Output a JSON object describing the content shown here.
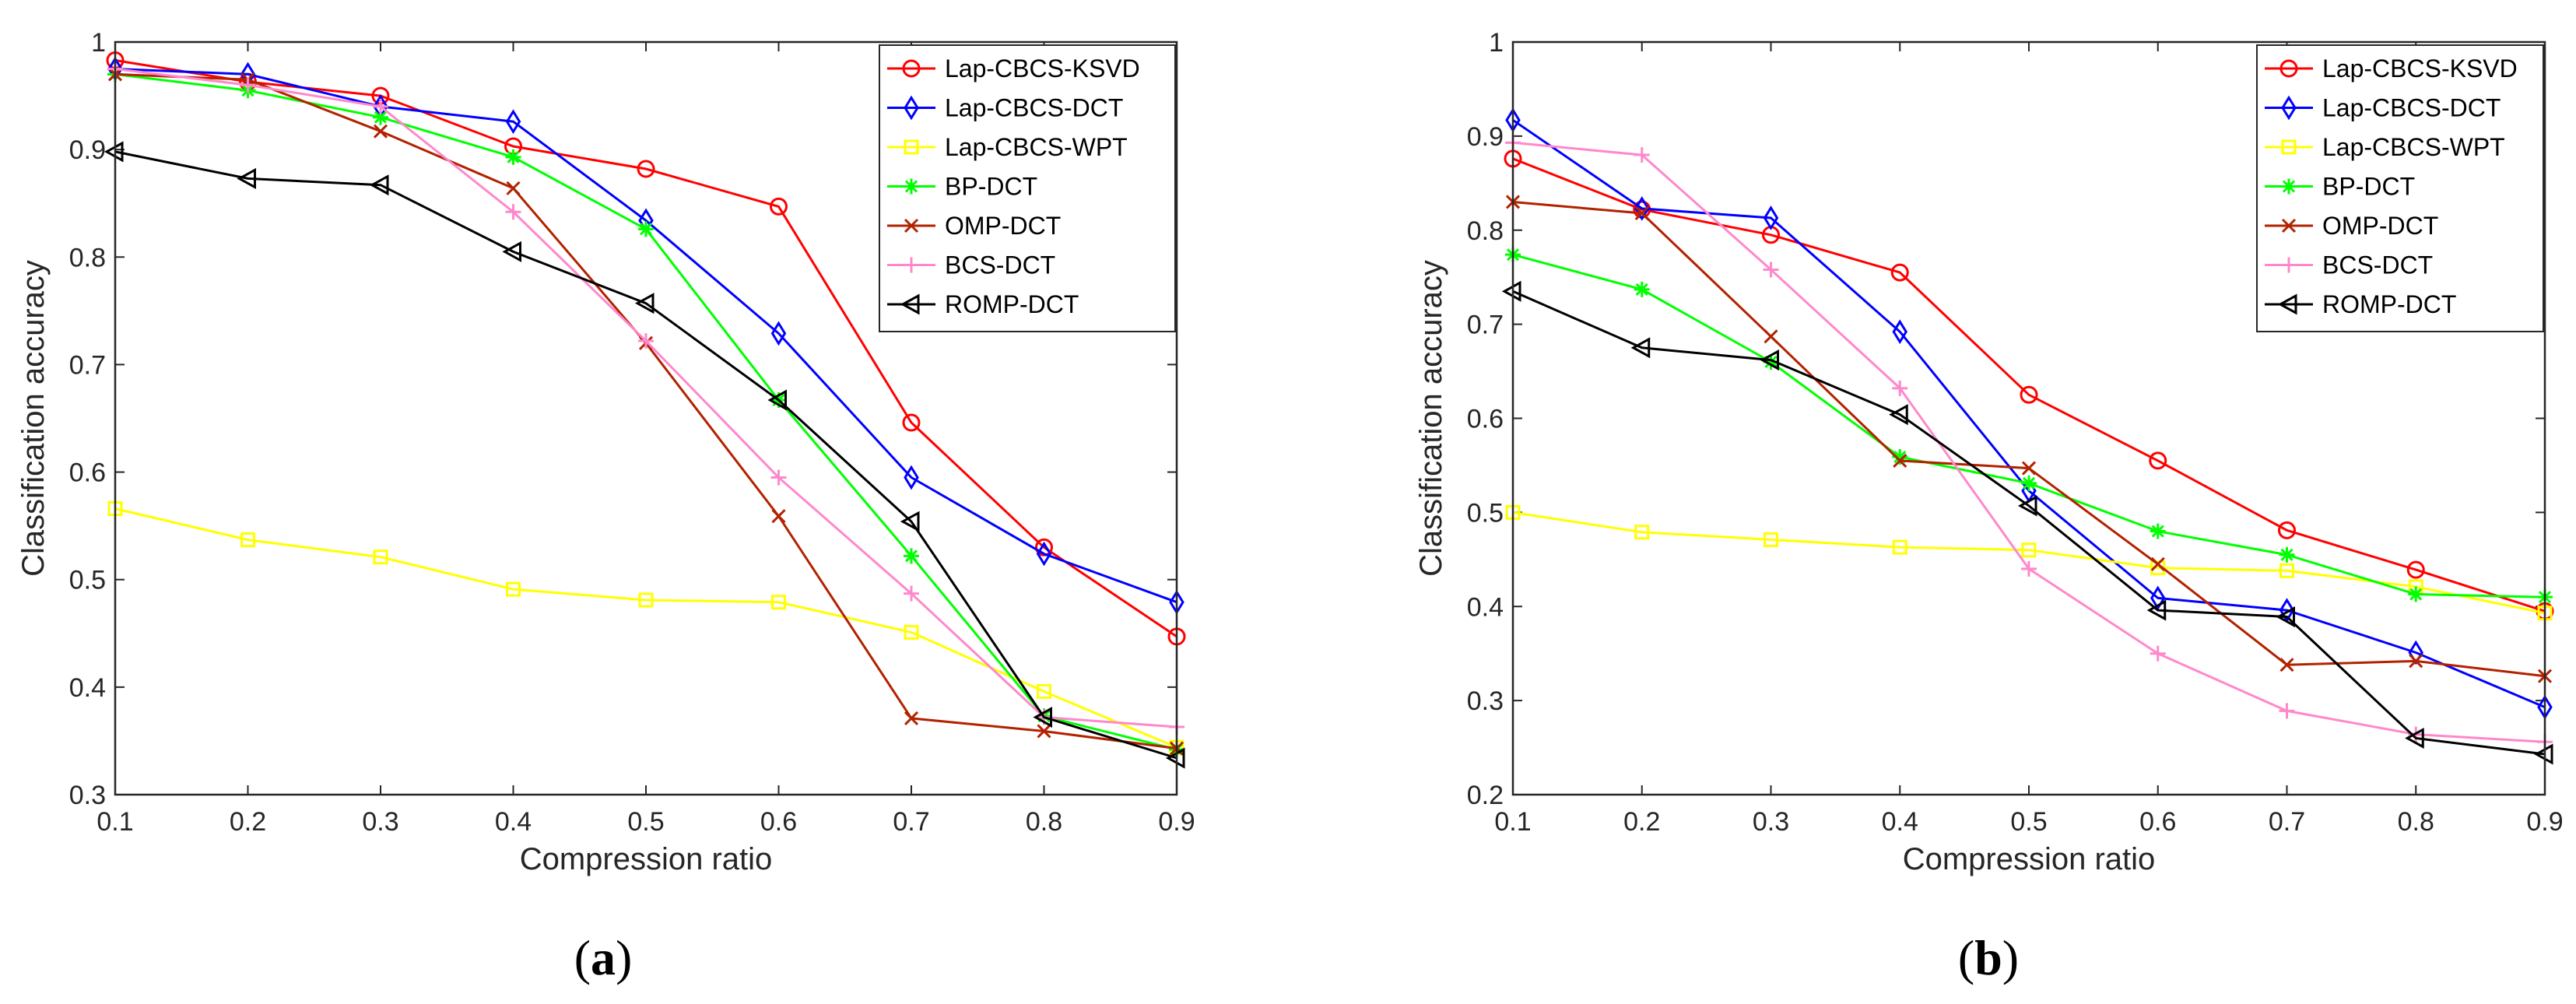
{
  "colors": {
    "Lap-CBCS-KSVD": "#ff0000",
    "Lap-CBCS-DCT": "#0000ff",
    "Lap-CBCS-WPT": "#ffff00",
    "BP-DCT": "#00ff00",
    "OMP-DCT": "#b22200",
    "BCS-DCT": "#ff88cc",
    "ROMP-DCT": "#000000"
  },
  "markers": {
    "Lap-CBCS-KSVD": "circle",
    "Lap-CBCS-DCT": "diamond",
    "Lap-CBCS-WPT": "square",
    "BP-DCT": "asterisk",
    "OMP-DCT": "x",
    "BCS-DCT": "plus",
    "ROMP-DCT": "triangle-left"
  },
  "chart_data": [
    {
      "type": "line",
      "caption": {
        "open": "(",
        "letter": "a",
        "close": ")"
      },
      "xlabel": "Compression ratio",
      "ylabel": "Classification accuracy",
      "xlim": [
        0.1,
        0.9
      ],
      "ylim": [
        0.3,
        1.0
      ],
      "x": [
        0.1,
        0.2,
        0.3,
        0.4,
        0.5,
        0.6,
        0.7,
        0.8,
        0.9
      ],
      "xticks": [
        "0.1",
        "0.2",
        "0.3",
        "0.4",
        "0.5",
        "0.6",
        "0.7",
        "0.8",
        "0.9"
      ],
      "yticks": [
        "0.3",
        "0.4",
        "0.5",
        "0.6",
        "0.7",
        "0.8",
        "0.9",
        "1"
      ],
      "legend_position": "top-right",
      "series": [
        {
          "name": "Lap-CBCS-KSVD",
          "values": [
            0.983,
            0.963,
            0.95,
            0.903,
            0.882,
            0.847,
            0.646,
            0.53,
            0.447
          ]
        },
        {
          "name": "Lap-CBCS-DCT",
          "values": [
            0.975,
            0.97,
            0.94,
            0.926,
            0.834,
            0.729,
            0.595,
            0.524,
            0.479
          ]
        },
        {
          "name": "Lap-CBCS-WPT",
          "values": [
            0.566,
            0.537,
            0.521,
            0.491,
            0.481,
            0.479,
            0.451,
            0.396,
            0.344
          ]
        },
        {
          "name": "BP-DCT",
          "values": [
            0.97,
            0.955,
            0.93,
            0.893,
            0.826,
            0.667,
            0.522,
            0.373,
            0.342
          ]
        },
        {
          "name": "OMP-DCT",
          "values": [
            0.97,
            0.965,
            0.917,
            0.864,
            0.72,
            0.559,
            0.371,
            0.359,
            0.343
          ]
        },
        {
          "name": "BCS-DCT",
          "values": [
            0.975,
            0.96,
            0.94,
            0.842,
            0.722,
            0.595,
            0.487,
            0.372,
            0.363
          ]
        },
        {
          "name": "ROMP-DCT",
          "values": [
            0.898,
            0.873,
            0.867,
            0.805,
            0.757,
            0.667,
            0.554,
            0.372,
            0.334
          ]
        }
      ]
    },
    {
      "type": "line",
      "caption": {
        "open": "(",
        "letter": "b",
        "close": ")"
      },
      "xlabel": "Compression ratio",
      "ylabel": "Classification accuracy",
      "xlim": [
        0.1,
        0.9
      ],
      "ylim": [
        0.2,
        1.0
      ],
      "x": [
        0.1,
        0.2,
        0.3,
        0.4,
        0.5,
        0.6,
        0.7,
        0.8,
        0.9
      ],
      "xticks": [
        "0.1",
        "0.2",
        "0.3",
        "0.4",
        "0.5",
        "0.6",
        "0.7",
        "0.8",
        "0.9"
      ],
      "yticks": [
        "0.2",
        "0.3",
        "0.4",
        "0.5",
        "0.6",
        "0.7",
        "0.8",
        "0.9",
        "1"
      ],
      "legend_position": "top-right",
      "series": [
        {
          "name": "Lap-CBCS-KSVD",
          "values": [
            0.876,
            0.822,
            0.795,
            0.755,
            0.625,
            0.555,
            0.481,
            0.439,
            0.395
          ]
        },
        {
          "name": "Lap-CBCS-DCT",
          "values": [
            0.917,
            0.823,
            0.813,
            0.692,
            0.523,
            0.409,
            0.396,
            0.351,
            0.293
          ]
        },
        {
          "name": "Lap-CBCS-WPT",
          "values": [
            0.5,
            0.479,
            0.471,
            0.463,
            0.46,
            0.441,
            0.438,
            0.421,
            0.393
          ]
        },
        {
          "name": "BP-DCT",
          "values": [
            0.774,
            0.737,
            0.66,
            0.559,
            0.531,
            0.48,
            0.455,
            0.413,
            0.41
          ]
        },
        {
          "name": "OMP-DCT",
          "values": [
            0.83,
            0.818,
            0.687,
            0.555,
            0.547,
            0.445,
            0.338,
            0.342,
            0.326
          ]
        },
        {
          "name": "BCS-DCT",
          "values": [
            0.893,
            0.88,
            0.758,
            0.632,
            0.44,
            0.35,
            0.289,
            0.264,
            0.256
          ]
        },
        {
          "name": "ROMP-DCT",
          "values": [
            0.735,
            0.675,
            0.662,
            0.604,
            0.507,
            0.396,
            0.389,
            0.26,
            0.243
          ]
        }
      ]
    }
  ]
}
